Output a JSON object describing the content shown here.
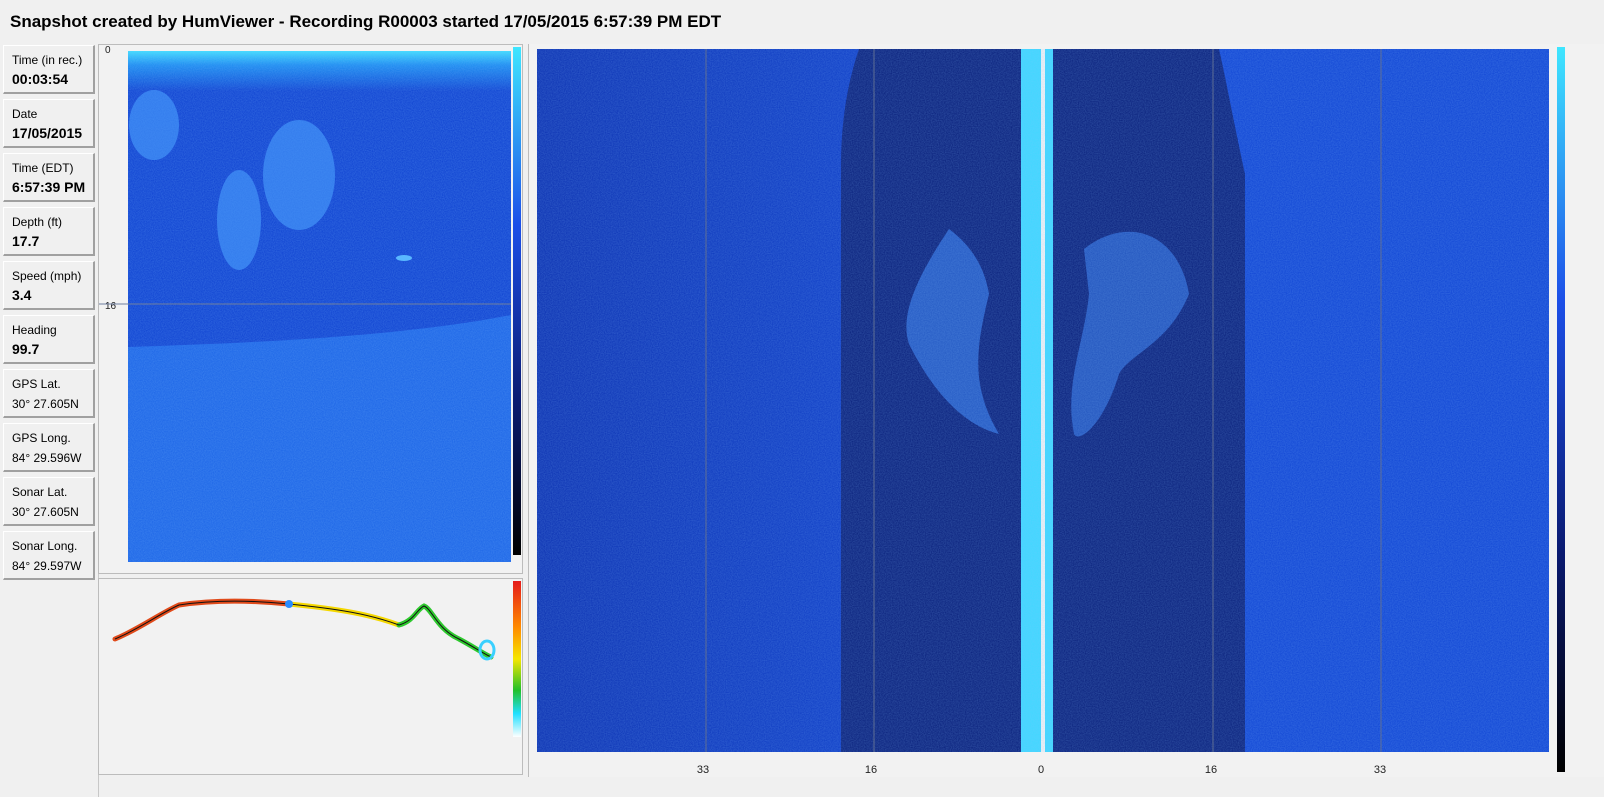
{
  "window_title": "Snapshot created by HumViewer - Recording R00003 started 17/05/2015 6:57:39 PM EDT",
  "info": [
    {
      "label": "Time (in rec.)",
      "value": "00:03:54"
    },
    {
      "label": "Date",
      "value": "17/05/2015"
    },
    {
      "label": "Time (EDT)",
      "value": "6:57:39 PM"
    },
    {
      "label": "Depth (ft)",
      "value": "17.7"
    },
    {
      "label": "Speed (mph)",
      "value": "3.4"
    },
    {
      "label": "Heading",
      "value": "99.7"
    },
    {
      "label": "GPS Lat.",
      "value": "30° 27.605N"
    },
    {
      "label": "GPS Long.",
      "value": "84° 29.596W"
    },
    {
      "label": "Sonar Lat.",
      "value": "30° 27.605N"
    },
    {
      "label": "Sonar Long.",
      "value": "84° 29.597W"
    }
  ],
  "downscan": {
    "depth_ticks": [
      "0",
      "16"
    ]
  },
  "sidescan": {
    "range_ticks": [
      "33",
      "16",
      "0",
      "16",
      "33"
    ]
  },
  "colors": {
    "water_deep": "#0a2fb8",
    "bottom": "#1a63e6",
    "surface": "#3fd8ff",
    "shadow": "#081e7a"
  }
}
